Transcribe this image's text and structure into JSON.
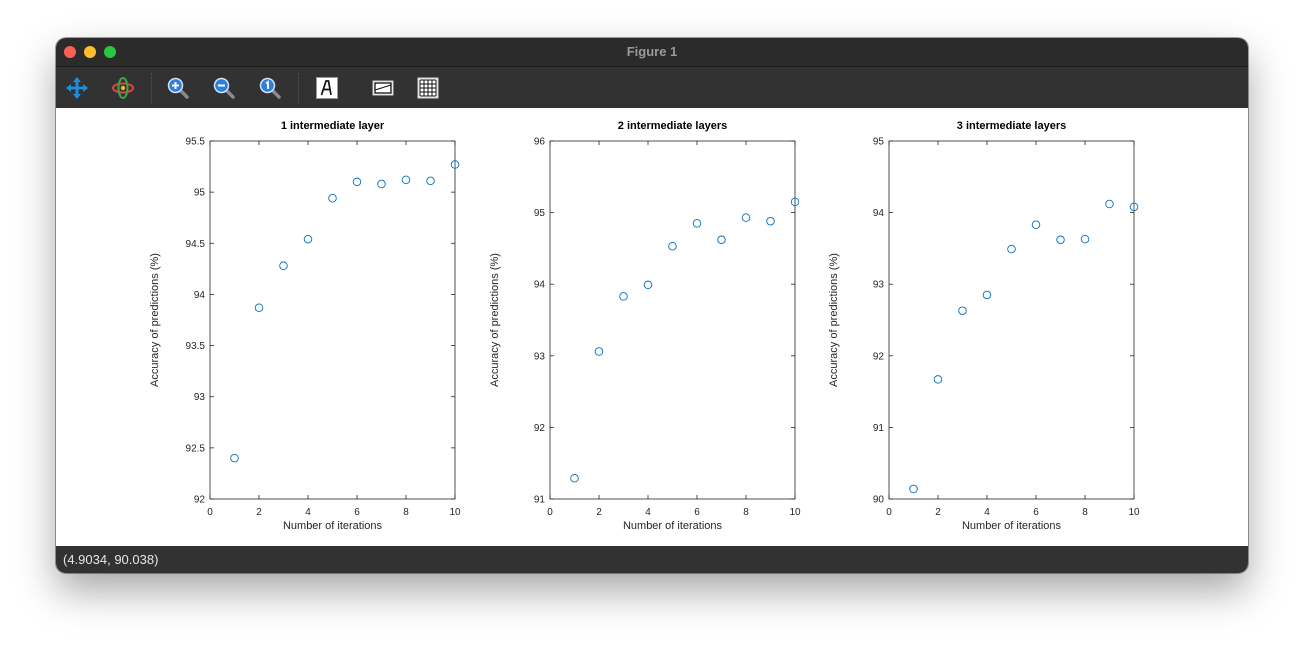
{
  "window": {
    "title": "Figure 1"
  },
  "toolbar": {
    "buttons": [
      {
        "name": "pan-tool-button",
        "icon": "pan-arrows-icon"
      },
      {
        "name": "rotate-tool-button",
        "icon": "rotate-3d-icon"
      },
      {
        "name": "zoom-in-button",
        "icon": "zoom-in-icon"
      },
      {
        "name": "zoom-out-button",
        "icon": "zoom-out-icon"
      },
      {
        "name": "zoom-reset-button",
        "icon": "zoom-original-icon"
      },
      {
        "name": "insert-text-button",
        "icon": "text-A-icon"
      },
      {
        "name": "toggle-axes-button",
        "icon": "axes-box-icon"
      },
      {
        "name": "toggle-grid-button",
        "icon": "grid-icon"
      }
    ]
  },
  "status": {
    "coordinates": "(4.9034, 90.038)"
  },
  "colors": {
    "marker": "#0072bd",
    "axis": "#262626",
    "titlebar": "#2b2b2b",
    "toolbar": "#323232"
  },
  "chart_data": [
    {
      "type": "scatter",
      "title": "1 intermediate layer",
      "xlabel": "Number of iterations",
      "ylabel": "Accuracy of predictions (%)",
      "xlim": [
        0,
        10
      ],
      "ylim": [
        92,
        95.5
      ],
      "xticks": [
        0,
        2,
        4,
        6,
        8,
        10
      ],
      "xtick_labels": [
        "0",
        "2",
        "4",
        "6",
        "8",
        "10"
      ],
      "yticks": [
        92,
        92.5,
        93,
        93.5,
        94,
        94.5,
        95,
        95.5
      ],
      "ytick_labels": [
        "92",
        "92.5",
        "93",
        "93.5",
        "94",
        "94.5",
        "95",
        "95.5"
      ],
      "x": [
        1,
        2,
        3,
        4,
        5,
        6,
        7,
        8,
        9,
        10
      ],
      "y": [
        92.4,
        93.87,
        94.28,
        94.54,
        94.94,
        95.1,
        95.08,
        95.12,
        95.11,
        95.27
      ]
    },
    {
      "type": "scatter",
      "title": "2 intermediate layers",
      "xlabel": "Number of iterations",
      "ylabel": "Accuracy of predictions (%)",
      "xlim": [
        0,
        10
      ],
      "ylim": [
        91,
        96
      ],
      "xticks": [
        0,
        2,
        4,
        6,
        8,
        10
      ],
      "xtick_labels": [
        "0",
        "2",
        "4",
        "6",
        "8",
        "10"
      ],
      "yticks": [
        91,
        92,
        93,
        94,
        95,
        96
      ],
      "ytick_labels": [
        "91",
        "92",
        "93",
        "94",
        "95",
        "96"
      ],
      "x": [
        1,
        2,
        3,
        4,
        5,
        6,
        7,
        8,
        9,
        10
      ],
      "y": [
        91.29,
        93.06,
        93.83,
        93.99,
        94.53,
        94.85,
        94.62,
        94.93,
        94.88,
        95.15
      ]
    },
    {
      "type": "scatter",
      "title": "3 intermediate layers",
      "xlabel": "Number of iterations",
      "ylabel": "Accuracy of predictions (%)",
      "xlim": [
        0,
        10
      ],
      "ylim": [
        90,
        95
      ],
      "xticks": [
        0,
        2,
        4,
        6,
        8,
        10
      ],
      "xtick_labels": [
        "0",
        "2",
        "4",
        "6",
        "8",
        "10"
      ],
      "yticks": [
        90,
        91,
        92,
        93,
        94,
        95
      ],
      "ytick_labels": [
        "90",
        "91",
        "92",
        "93",
        "94",
        "95"
      ],
      "x": [
        1,
        2,
        3,
        4,
        5,
        6,
        7,
        8,
        9,
        10
      ],
      "y": [
        90.14,
        91.67,
        92.63,
        92.85,
        93.49,
        93.83,
        93.62,
        93.63,
        94.12,
        94.08
      ]
    }
  ]
}
